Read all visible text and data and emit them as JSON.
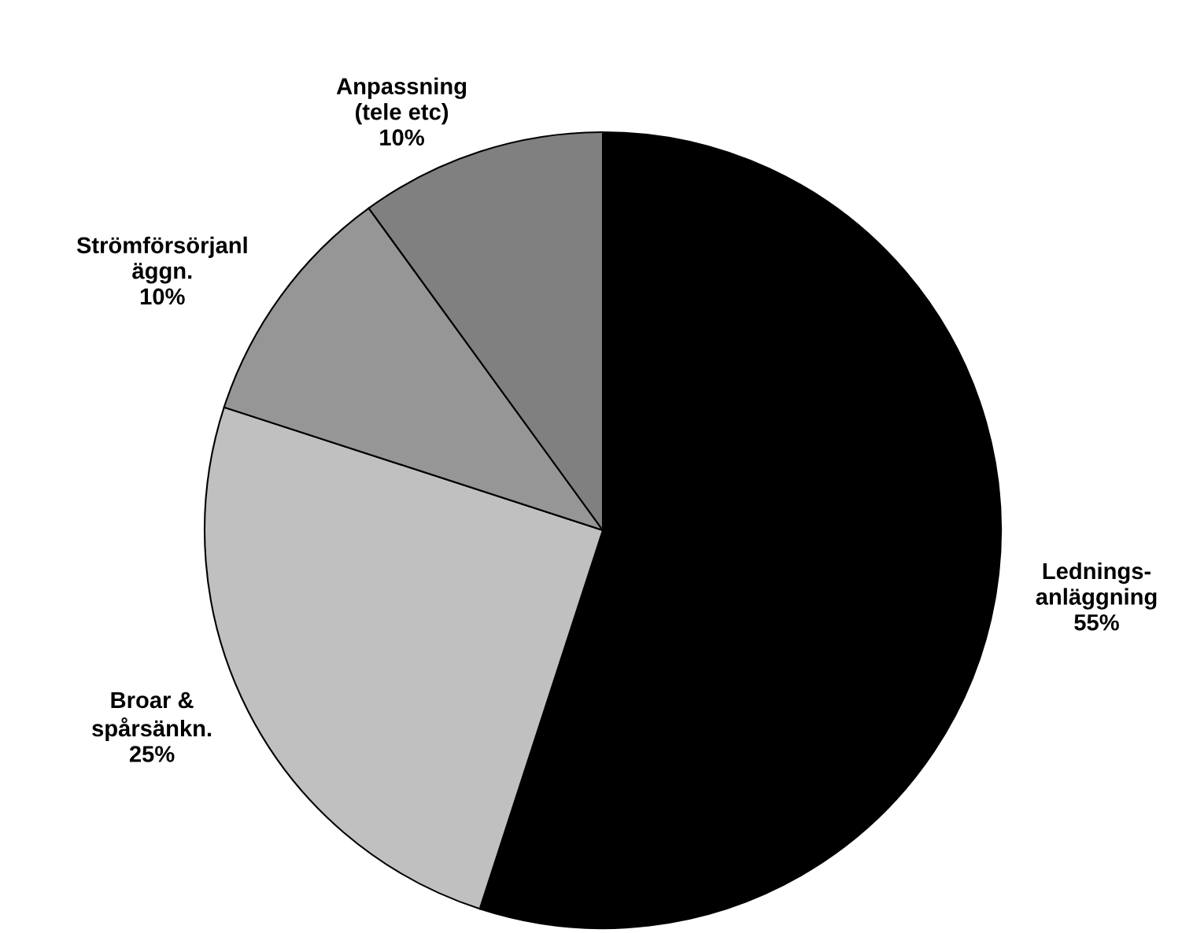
{
  "chart_data": {
    "type": "pie",
    "categories": [
      "Lednings-\nanläggning",
      "Broar &\nspårsänkn.",
      "Strömförsörjanl\näggn.",
      "Anpassning\n(tele etc)"
    ],
    "values": [
      55,
      25,
      10,
      10
    ],
    "value_labels": [
      "55%",
      "25%",
      "10%",
      "10%"
    ],
    "colors": [
      "#000000",
      "#c0c0c0",
      "#969696",
      "#808080"
    ],
    "legend": false
  }
}
